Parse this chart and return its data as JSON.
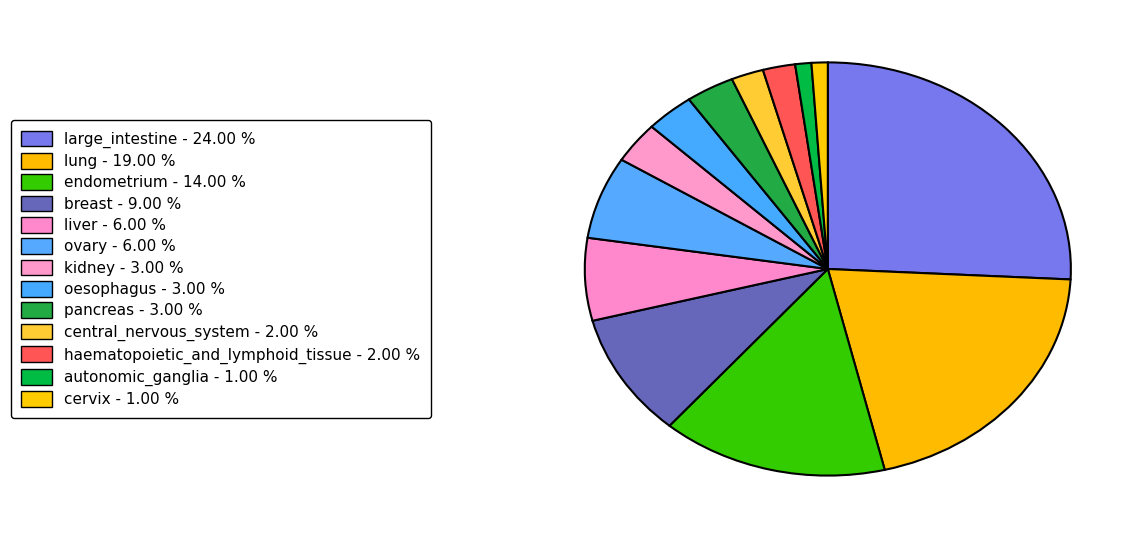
{
  "labels": [
    "large_intestine",
    "lung",
    "endometrium",
    "breast",
    "liver",
    "ovary",
    "kidney",
    "oesophagus",
    "pancreas",
    "central_nervous_system",
    "haematopoietic_and_lymphoid_tissue",
    "autonomic_ganglia",
    "cervix"
  ],
  "values": [
    24,
    19,
    14,
    9,
    6,
    6,
    3,
    3,
    3,
    2,
    2,
    1,
    1
  ],
  "colors": [
    "#7777EE",
    "#FFBB00",
    "#33CC00",
    "#6666BB",
    "#FF88CC",
    "#55AAFF",
    "#FF99CC",
    "#44AAFF",
    "#22AA44",
    "#FFCC33",
    "#FF5555",
    "#00BB44",
    "#FFCC00"
  ],
  "legend_labels": [
    "large_intestine - 24.00 %",
    "lung - 19.00 %",
    "endometrium - 14.00 %",
    "breast - 9.00 %",
    "liver - 6.00 %",
    "ovary - 6.00 %",
    "kidney - 3.00 %",
    "oesophagus - 3.00 %",
    "pancreas - 3.00 %",
    "central_nervous_system - 2.00 %",
    "haematopoietic_and_lymphoid_tissue - 2.00 %",
    "autonomic_ganglia - 1.00 %",
    "cervix - 1.00 %"
  ],
  "startangle": 90,
  "figsize": [
    11.34,
    5.38
  ],
  "dpi": 100
}
